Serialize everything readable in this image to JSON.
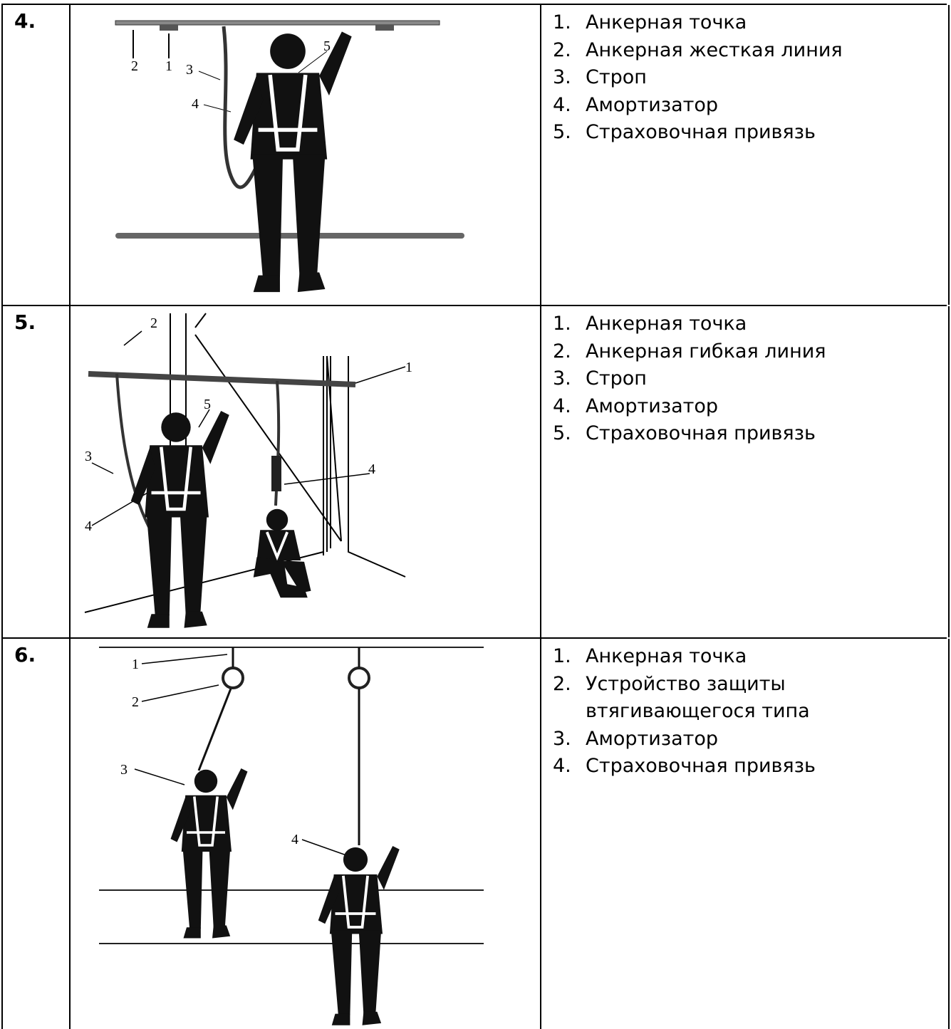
{
  "table": {
    "rows": [
      {
        "number": "4.",
        "figure": {
          "callouts": [
            "2",
            "1",
            "3",
            "4",
            "5"
          ]
        },
        "items": [
          {
            "number": "1.",
            "text": "Анкерная точка"
          },
          {
            "number": "2.",
            "text": "Анкерная жесткая линия"
          },
          {
            "number": "3.",
            "text": "Строп"
          },
          {
            "number": "4.",
            "text": "Амортизатор"
          },
          {
            "number": "5.",
            "text": "Страховочная привязь"
          }
        ]
      },
      {
        "number": "5.",
        "figure": {
          "callouts": [
            "2",
            "1",
            "5",
            "3",
            "4",
            "4"
          ]
        },
        "items": [
          {
            "number": "1.",
            "text": "Анкерная точка"
          },
          {
            "number": "2.",
            "text": "Анкерная гибкая линия"
          },
          {
            "number": "3.",
            "text": "Строп"
          },
          {
            "number": "4.",
            "text": "Амортизатор"
          },
          {
            "number": "5.",
            "text": "Страховочная привязь"
          }
        ]
      },
      {
        "number": "6.",
        "figure": {
          "callouts": [
            "1",
            "2",
            "3",
            "4"
          ]
        },
        "items": [
          {
            "number": "1.",
            "text": "Анкерная точка"
          },
          {
            "number": "2.",
            "text": "Устройство защиты втягивающегося типа"
          },
          {
            "number": "3.",
            "text": "Амортизатор"
          },
          {
            "number": "4.",
            "text": "Страховочная привязь"
          }
        ]
      }
    ]
  }
}
